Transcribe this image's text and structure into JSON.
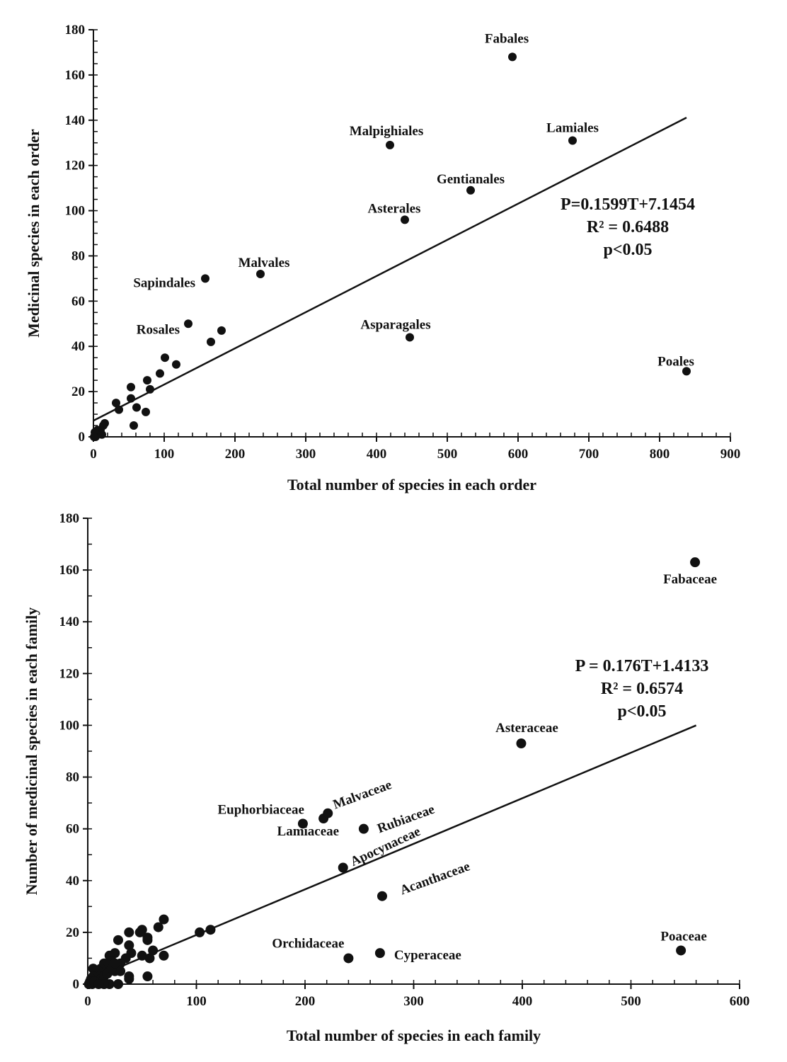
{
  "chart_data": [
    {
      "type": "scatter",
      "xlabel": "Total number of species in each order",
      "ylabel": "Medicinal species in each order",
      "xlim": [
        0,
        900
      ],
      "ylim": [
        0,
        180
      ],
      "xticks": [
        0,
        100,
        200,
        300,
        400,
        500,
        600,
        700,
        800,
        900
      ],
      "yticks": [
        0,
        20,
        40,
        60,
        80,
        100,
        120,
        140,
        160,
        180
      ],
      "trendline": {
        "slope": 0.1599,
        "intercept": 7.1454,
        "x_range": [
          0,
          838
        ]
      },
      "equation": [
        "P=0.1599T+7.1454",
        "R² = 0.6488",
        "p<0.05"
      ],
      "points": [
        {
          "x": 592,
          "y": 168,
          "label": "Fabales"
        },
        {
          "x": 677,
          "y": 131,
          "label": "Lamiales"
        },
        {
          "x": 419,
          "y": 129,
          "label": "Malpighiales"
        },
        {
          "x": 533,
          "y": 109,
          "label": "Gentianales"
        },
        {
          "x": 440,
          "y": 96,
          "label": "Asterales"
        },
        {
          "x": 236,
          "y": 72,
          "label": "Malvales"
        },
        {
          "x": 158,
          "y": 70,
          "label": "Sapindales"
        },
        {
          "x": 134,
          "y": 50,
          "label": "Rosales"
        },
        {
          "x": 447,
          "y": 44,
          "label": "Asparagales"
        },
        {
          "x": 838,
          "y": 29,
          "label": "Poales"
        },
        {
          "x": 166,
          "y": 42
        },
        {
          "x": 181,
          "y": 47
        },
        {
          "x": 101,
          "y": 35
        },
        {
          "x": 117,
          "y": 32
        },
        {
          "x": 94,
          "y": 28
        },
        {
          "x": 76,
          "y": 25
        },
        {
          "x": 53,
          "y": 22
        },
        {
          "x": 80,
          "y": 21
        },
        {
          "x": 53,
          "y": 17
        },
        {
          "x": 32,
          "y": 15
        },
        {
          "x": 36,
          "y": 12
        },
        {
          "x": 61,
          "y": 13
        },
        {
          "x": 74,
          "y": 11
        },
        {
          "x": 57,
          "y": 5
        },
        {
          "x": 16,
          "y": 6
        },
        {
          "x": 14,
          "y": 5
        },
        {
          "x": 10,
          "y": 3
        },
        {
          "x": 8,
          "y": 2
        },
        {
          "x": 5,
          "y": 1
        },
        {
          "x": 3,
          "y": 0
        },
        {
          "x": 2,
          "y": 2
        },
        {
          "x": 6,
          "y": 3
        },
        {
          "x": 12,
          "y": 1
        },
        {
          "x": 4,
          "y": 1
        },
        {
          "x": 1,
          "y": 0
        }
      ]
    },
    {
      "type": "scatter",
      "xlabel": "Total number of species in each family",
      "ylabel": "Number of medicinal species in each family",
      "xlim": [
        0,
        600
      ],
      "ylim": [
        0,
        180
      ],
      "xticks": [
        0,
        100,
        200,
        300,
        400,
        500,
        600
      ],
      "yticks": [
        0,
        20,
        40,
        60,
        80,
        100,
        120,
        140,
        160,
        180
      ],
      "trendline": {
        "slope": 0.176,
        "intercept": 1.4133,
        "x_range": [
          0,
          560
        ]
      },
      "equation": [
        "P = 0.176T+1.4133",
        "R² = 0.6574",
        "p<0.05"
      ],
      "points": [
        {
          "x": 559,
          "y": 163,
          "label": "Fabaceae"
        },
        {
          "x": 399,
          "y": 93,
          "label": "Asteraceae"
        },
        {
          "x": 198,
          "y": 62,
          "label": "Euphorbiaceae"
        },
        {
          "x": 217,
          "y": 64,
          "label": "Lamiaceae"
        },
        {
          "x": 221,
          "y": 66,
          "label": "Malvaceae"
        },
        {
          "x": 254,
          "y": 60,
          "label": "Rubiaceae"
        },
        {
          "x": 235,
          "y": 45,
          "label": "Apocynaceae"
        },
        {
          "x": 271,
          "y": 34,
          "label": "Acanthaceae"
        },
        {
          "x": 240,
          "y": 10,
          "label": "Orchidaceae"
        },
        {
          "x": 269,
          "y": 12,
          "label": "Cyperaceae"
        },
        {
          "x": 546,
          "y": 13,
          "label": "Poaceae"
        },
        {
          "x": 103,
          "y": 20
        },
        {
          "x": 113,
          "y": 21
        },
        {
          "x": 70,
          "y": 25
        },
        {
          "x": 70,
          "y": 11
        },
        {
          "x": 65,
          "y": 22
        },
        {
          "x": 60,
          "y": 13
        },
        {
          "x": 55,
          "y": 18
        },
        {
          "x": 55,
          "y": 17
        },
        {
          "x": 57,
          "y": 10
        },
        {
          "x": 55,
          "y": 3
        },
        {
          "x": 50,
          "y": 21
        },
        {
          "x": 48,
          "y": 20
        },
        {
          "x": 50,
          "y": 11
        },
        {
          "x": 38,
          "y": 20
        },
        {
          "x": 38,
          "y": 15
        },
        {
          "x": 40,
          "y": 12
        },
        {
          "x": 28,
          "y": 17
        },
        {
          "x": 35,
          "y": 10
        },
        {
          "x": 30,
          "y": 8
        },
        {
          "x": 25,
          "y": 12
        },
        {
          "x": 20,
          "y": 11
        },
        {
          "x": 22,
          "y": 9
        },
        {
          "x": 18,
          "y": 7
        },
        {
          "x": 15,
          "y": 8
        },
        {
          "x": 12,
          "y": 6
        },
        {
          "x": 10,
          "y": 5
        },
        {
          "x": 8,
          "y": 4
        },
        {
          "x": 5,
          "y": 6
        },
        {
          "x": 5,
          "y": 3
        },
        {
          "x": 3,
          "y": 2
        },
        {
          "x": 2,
          "y": 1
        },
        {
          "x": 1,
          "y": 0
        },
        {
          "x": 4,
          "y": 0
        },
        {
          "x": 8,
          "y": 1
        },
        {
          "x": 12,
          "y": 2
        },
        {
          "x": 15,
          "y": 3
        },
        {
          "x": 18,
          "y": 4
        },
        {
          "x": 20,
          "y": 0
        },
        {
          "x": 25,
          "y": 5
        },
        {
          "x": 28,
          "y": 0
        },
        {
          "x": 38,
          "y": 3
        },
        {
          "x": 38,
          "y": 2
        },
        {
          "x": 15,
          "y": 0
        },
        {
          "x": 6,
          "y": 1
        },
        {
          "x": 10,
          "y": 0
        },
        {
          "x": 30,
          "y": 5
        },
        {
          "x": 22,
          "y": 6
        },
        {
          "x": 25,
          "y": 8
        }
      ]
    }
  ]
}
